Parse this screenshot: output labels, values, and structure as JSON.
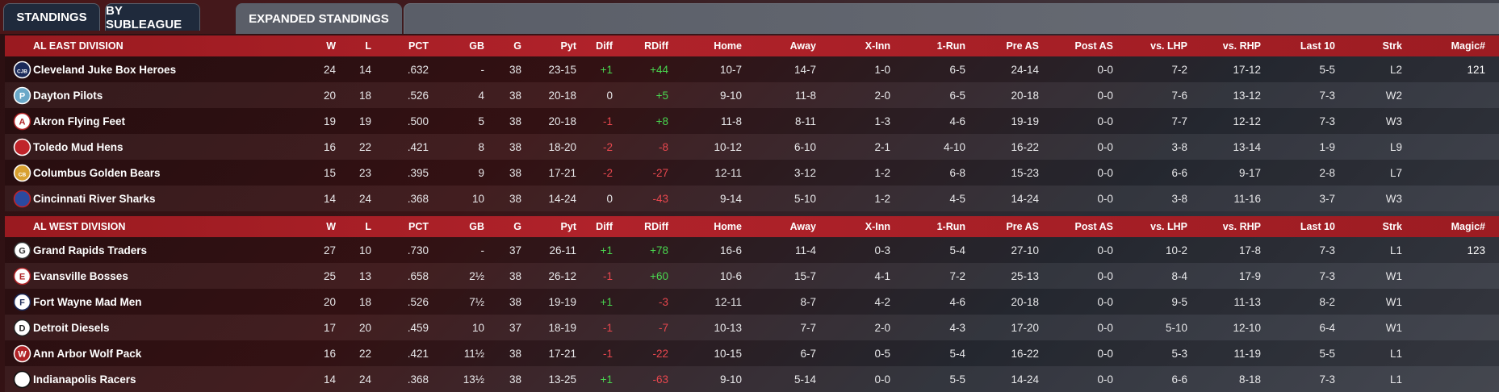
{
  "tabs": [
    {
      "label": "STANDINGS",
      "active": false
    },
    {
      "label": "BY SUBLEAGUE",
      "active": false
    },
    {
      "label": "EXPANDED STANDINGS",
      "active": true
    }
  ],
  "columns": [
    "W",
    "L",
    "PCT",
    "GB",
    "G",
    "Pyt",
    "Diff",
    "RDiff",
    "Home",
    "Away",
    "X-Inn",
    "1-Run",
    "Pre AS",
    "Post AS",
    "vs. LHP",
    "vs. RHP",
    "Last 10",
    "Strk",
    "Magic#"
  ],
  "divisions": [
    {
      "name": "AL EAST DIVISION",
      "teams": [
        {
          "name": "Cleveland Juke Box Heroes",
          "logo": "cleveland-logo-icon",
          "W": "24",
          "L": "14",
          "PCT": ".632",
          "GB": "-",
          "G": "38",
          "Pyt": "23-15",
          "Diff": "+1",
          "RDiff": "+44",
          "Home": "10-7",
          "Away": "14-7",
          "XInn": "1-0",
          "OneRun": "6-5",
          "PreAS": "24-14",
          "PostAS": "0-0",
          "vsLHP": "7-2",
          "vsRHP": "17-12",
          "Last10": "5-5",
          "Strk": "L2",
          "Magic": "121"
        },
        {
          "name": "Dayton Pilots",
          "logo": "dayton-logo-icon",
          "W": "20",
          "L": "18",
          "PCT": ".526",
          "GB": "4",
          "G": "38",
          "Pyt": "20-18",
          "Diff": "0",
          "RDiff": "+5",
          "Home": "9-10",
          "Away": "11-8",
          "XInn": "2-0",
          "OneRun": "6-5",
          "PreAS": "20-18",
          "PostAS": "0-0",
          "vsLHP": "7-6",
          "vsRHP": "13-12",
          "Last10": "7-3",
          "Strk": "W2",
          "Magic": ""
        },
        {
          "name": "Akron  Flying Feet",
          "logo": "akron-logo-icon",
          "W": "19",
          "L": "19",
          "PCT": ".500",
          "GB": "5",
          "G": "38",
          "Pyt": "20-18",
          "Diff": "-1",
          "RDiff": "+8",
          "Home": "11-8",
          "Away": "8-11",
          "XInn": "1-3",
          "OneRun": "4-6",
          "PreAS": "19-19",
          "PostAS": "0-0",
          "vsLHP": "7-7",
          "vsRHP": "12-12",
          "Last10": "7-3",
          "Strk": "W3",
          "Magic": ""
        },
        {
          "name": "Toledo  Mud Hens",
          "logo": "toledo-logo-icon",
          "W": "16",
          "L": "22",
          "PCT": ".421",
          "GB": "8",
          "G": "38",
          "Pyt": "18-20",
          "Diff": "-2",
          "RDiff": "-8",
          "Home": "10-12",
          "Away": "6-10",
          "XInn": "2-1",
          "OneRun": "4-10",
          "PreAS": "16-22",
          "PostAS": "0-0",
          "vsLHP": "3-8",
          "vsRHP": "13-14",
          "Last10": "1-9",
          "Strk": "L9",
          "Magic": ""
        },
        {
          "name": "Columbus Golden Bears",
          "logo": "columbus-logo-icon",
          "W": "15",
          "L": "23",
          "PCT": ".395",
          "GB": "9",
          "G": "38",
          "Pyt": "17-21",
          "Diff": "-2",
          "RDiff": "-27",
          "Home": "12-11",
          "Away": "3-12",
          "XInn": "1-2",
          "OneRun": "6-8",
          "PreAS": "15-23",
          "PostAS": "0-0",
          "vsLHP": "6-6",
          "vsRHP": "9-17",
          "Last10": "2-8",
          "Strk": "L7",
          "Magic": ""
        },
        {
          "name": "Cincinnati River Sharks",
          "logo": "cincinnati-logo-icon",
          "W": "14",
          "L": "24",
          "PCT": ".368",
          "GB": "10",
          "G": "38",
          "Pyt": "14-24",
          "Diff": "0",
          "RDiff": "-43",
          "Home": "9-14",
          "Away": "5-10",
          "XInn": "1-2",
          "OneRun": "4-5",
          "PreAS": "14-24",
          "PostAS": "0-0",
          "vsLHP": "3-8",
          "vsRHP": "11-16",
          "Last10": "3-7",
          "Strk": "W3",
          "Magic": ""
        }
      ]
    },
    {
      "name": "AL WEST DIVISION",
      "teams": [
        {
          "name": "Grand Rapids Traders",
          "logo": "grand-rapids-logo-icon",
          "W": "27",
          "L": "10",
          "PCT": ".730",
          "GB": "-",
          "G": "37",
          "Pyt": "26-11",
          "Diff": "+1",
          "RDiff": "+78",
          "Home": "16-6",
          "Away": "11-4",
          "XInn": "0-3",
          "OneRun": "5-4",
          "PreAS": "27-10",
          "PostAS": "0-0",
          "vsLHP": "10-2",
          "vsRHP": "17-8",
          "Last10": "7-3",
          "Strk": "L1",
          "Magic": "123"
        },
        {
          "name": "Evansville Bosses",
          "logo": "evansville-logo-icon",
          "W": "25",
          "L": "13",
          "PCT": ".658",
          "GB": "2½",
          "G": "38",
          "Pyt": "26-12",
          "Diff": "-1",
          "RDiff": "+60",
          "Home": "10-6",
          "Away": "15-7",
          "XInn": "4-1",
          "OneRun": "7-2",
          "PreAS": "25-13",
          "PostAS": "0-0",
          "vsLHP": "8-4",
          "vsRHP": "17-9",
          "Last10": "7-3",
          "Strk": "W1",
          "Magic": ""
        },
        {
          "name": "Fort Wayne Mad Men",
          "logo": "fort-wayne-logo-icon",
          "W": "20",
          "L": "18",
          "PCT": ".526",
          "GB": "7½",
          "G": "38",
          "Pyt": "19-19",
          "Diff": "+1",
          "RDiff": "-3",
          "Home": "12-11",
          "Away": "8-7",
          "XInn": "4-2",
          "OneRun": "4-6",
          "PreAS": "20-18",
          "PostAS": "0-0",
          "vsLHP": "9-5",
          "vsRHP": "11-13",
          "Last10": "8-2",
          "Strk": "W1",
          "Magic": ""
        },
        {
          "name": "Detroit Diesels",
          "logo": "detroit-logo-icon",
          "W": "17",
          "L": "20",
          "PCT": ".459",
          "GB": "10",
          "G": "37",
          "Pyt": "18-19",
          "Diff": "-1",
          "RDiff": "-7",
          "Home": "10-13",
          "Away": "7-7",
          "XInn": "2-0",
          "OneRun": "4-3",
          "PreAS": "17-20",
          "PostAS": "0-0",
          "vsLHP": "5-10",
          "vsRHP": "12-10",
          "Last10": "6-4",
          "Strk": "W1",
          "Magic": ""
        },
        {
          "name": "Ann Arbor Wolf Pack",
          "logo": "ann-arbor-logo-icon",
          "W": "16",
          "L": "22",
          "PCT": ".421",
          "GB": "11½",
          "G": "38",
          "Pyt": "17-21",
          "Diff": "-1",
          "RDiff": "-22",
          "Home": "10-15",
          "Away": "6-7",
          "XInn": "0-5",
          "OneRun": "5-4",
          "PreAS": "16-22",
          "PostAS": "0-0",
          "vsLHP": "5-3",
          "vsRHP": "11-19",
          "Last10": "5-5",
          "Strk": "L1",
          "Magic": ""
        },
        {
          "name": "Indianapolis Racers",
          "logo": "indianapolis-logo-icon",
          "W": "14",
          "L": "24",
          "PCT": ".368",
          "GB": "13½",
          "G": "38",
          "Pyt": "13-25",
          "Diff": "+1",
          "RDiff": "-63",
          "Home": "9-10",
          "Away": "5-14",
          "XInn": "0-0",
          "OneRun": "5-5",
          "PreAS": "14-24",
          "PostAS": "0-0",
          "vsLHP": "6-6",
          "vsRHP": "8-18",
          "Last10": "7-3",
          "Strk": "L1",
          "Magic": ""
        }
      ]
    }
  ]
}
